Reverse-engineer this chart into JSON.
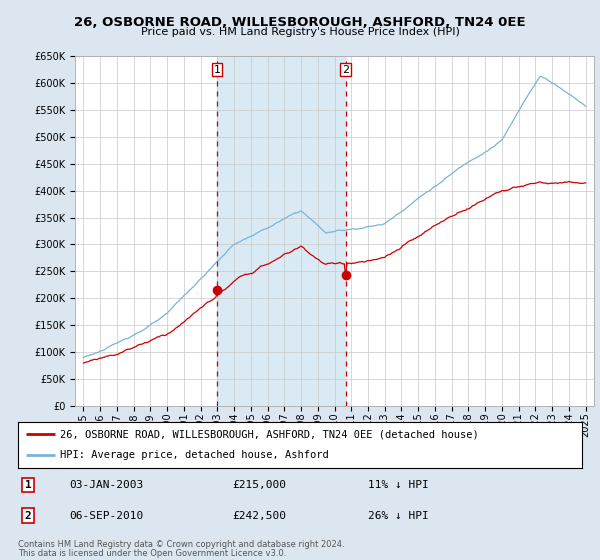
{
  "title": "26, OSBORNE ROAD, WILLESBOROUGH, ASHFORD, TN24 0EE",
  "subtitle": "Price paid vs. HM Land Registry's House Price Index (HPI)",
  "ylim": [
    0,
    650000
  ],
  "yticks": [
    0,
    50000,
    100000,
    150000,
    200000,
    250000,
    300000,
    350000,
    400000,
    450000,
    500000,
    550000,
    600000,
    650000
  ],
  "ylabels": [
    "£0",
    "£50K",
    "£100K",
    "£150K",
    "£200K",
    "£250K",
    "£300K",
    "£350K",
    "£400K",
    "£450K",
    "£500K",
    "£550K",
    "£600K",
    "£650K"
  ],
  "xlim": [
    1994.5,
    2025.5
  ],
  "xticks": [
    1995,
    1996,
    1997,
    1998,
    1999,
    2000,
    2001,
    2002,
    2003,
    2004,
    2005,
    2006,
    2007,
    2008,
    2009,
    2010,
    2011,
    2012,
    2013,
    2014,
    2015,
    2016,
    2017,
    2018,
    2019,
    2020,
    2021,
    2022,
    2023,
    2024,
    2025
  ],
  "sale1_year": 2003.0,
  "sale1_value": 215000,
  "sale2_year": 2010.67,
  "sale2_value": 242500,
  "legend_line1": "26, OSBORNE ROAD, WILLESBOROUGH, ASHFORD, TN24 0EE (detached house)",
  "legend_line2": "HPI: Average price, detached house, Ashford",
  "table_row1": [
    "1",
    "03-JAN-2003",
    "£215,000",
    "11% ↓ HPI"
  ],
  "table_row2": [
    "2",
    "06-SEP-2010",
    "£242,500",
    "26% ↓ HPI"
  ],
  "footnote1": "Contains HM Land Registry data © Crown copyright and database right 2024.",
  "footnote2": "This data is licensed under the Open Government Licence v3.0.",
  "hpi_color": "#7ab4d8",
  "price_color": "#cc0000",
  "shade_color": "#daeaf5",
  "background_color": "#dce6f0",
  "plot_bg_color": "#ffffff",
  "grid_color": "#c8c8c8",
  "title_fontsize": 9.5,
  "subtitle_fontsize": 8.0
}
